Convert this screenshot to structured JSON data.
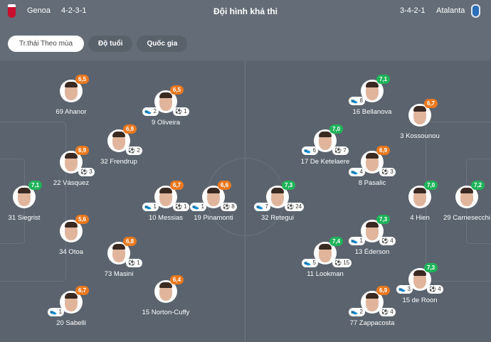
{
  "header": {
    "home_team": "Genoa",
    "home_formation": "4-2-3-1",
    "title": "Đội hình khả thi",
    "away_formation": "3-4-2-1",
    "away_team": "Atalanta"
  },
  "tabs": [
    {
      "label": "Tr.thái Theo mùa",
      "active": true
    },
    {
      "label": "Độ tuổi"
    },
    {
      "label": "Quốc gia"
    }
  ],
  "colors": {
    "rating_good": "#1fb35a",
    "rating_avg": "#e8781e",
    "pitch": "#5b636e"
  },
  "icons": {
    "assist": "boot-icon",
    "goal": "ball-icon"
  },
  "home_players": [
    {
      "name": "31 Siegrist",
      "rating": "7,1"
    },
    {
      "name": "22 Vásquez",
      "rating": "6,9",
      "goals": "3"
    },
    {
      "name": "34 Otoa",
      "rating": "5,6"
    },
    {
      "name": "69 Ahanor",
      "rating": "6,5"
    },
    {
      "name": "20 Sabelli",
      "rating": "6,7",
      "assists": "1"
    },
    {
      "name": "32 Frendrup",
      "rating": "6,9",
      "goals": "2"
    },
    {
      "name": "73 Masini",
      "rating": "6,8",
      "goals": "1"
    },
    {
      "name": "9 Oliveira",
      "rating": "6,5",
      "assists": "2",
      "goals": "1"
    },
    {
      "name": "10 Messias",
      "rating": "6,7",
      "assists": "1",
      "goals": "1"
    },
    {
      "name": "15 Norton-Cuffy",
      "rating": "6,4"
    },
    {
      "name": "19 Pinamonti",
      "rating": "6,6",
      "assists": "1",
      "goals": "8"
    }
  ],
  "away_players": [
    {
      "name": "29 Carnesecchi",
      "rating": "7,2"
    },
    {
      "name": "4 Hien",
      "rating": "7,0"
    },
    {
      "name": "3 Kossounou",
      "rating": "6,7"
    },
    {
      "name": "15 de Roon",
      "rating": "7,3",
      "assists": "3",
      "goals": "4"
    },
    {
      "name": "16 Bellanova",
      "rating": "7,1",
      "assists": "8"
    },
    {
      "name": "8 Pasalic",
      "rating": "6,9",
      "assists": "4",
      "goals": "3"
    },
    {
      "name": "13 Éderson",
      "rating": "7,3",
      "assists": "1",
      "goals": "4"
    },
    {
      "name": "77 Zappacosta",
      "rating": "6,9",
      "assists": "2",
      "goals": "4"
    },
    {
      "name": "17 De Ketelaere",
      "rating": "7,0",
      "assists": "6",
      "goals": "7"
    },
    {
      "name": "11 Lookman",
      "rating": "7,4",
      "assists": "5",
      "goals": "15"
    },
    {
      "name": "32 Retegui",
      "rating": "7,3",
      "assists": "7",
      "goals": "24"
    }
  ]
}
